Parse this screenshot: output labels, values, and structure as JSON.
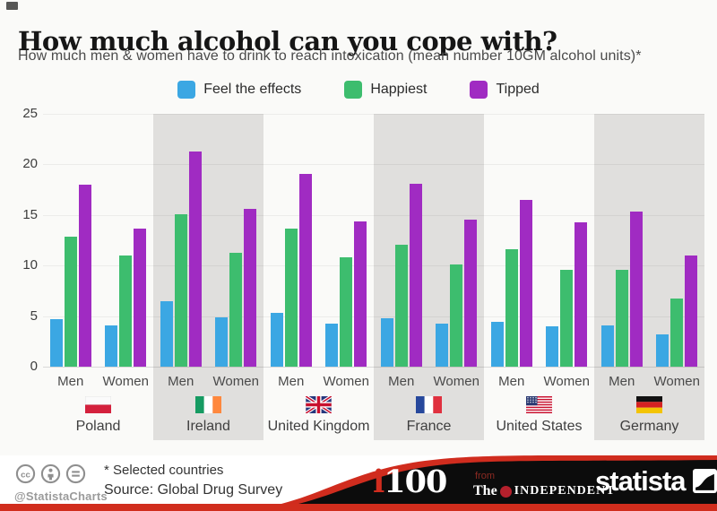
{
  "page": {
    "background": "#fafaf8",
    "accent_red": "#d02c1e",
    "band_gray": "#e0dfdd"
  },
  "header": {
    "title": "How much alcohol can you cope with?",
    "subtitle": "How much men & women have to drink to reach intoxication (mean number 10GM alcohol units)*"
  },
  "chart_data": {
    "type": "bar",
    "title": "How much alcohol can you cope with?",
    "xlabel": "",
    "ylabel": "",
    "ylim": [
      0,
      25
    ],
    "yticks": [
      25,
      20,
      15,
      10,
      5,
      0
    ],
    "grid": true,
    "legend_position": "top",
    "group_labels": [
      "Men",
      "Women"
    ],
    "series": [
      {
        "name": "Feel the effects",
        "color": "#3ba7e3"
      },
      {
        "name": "Happiest",
        "color": "#3dbd6e"
      },
      {
        "name": "Tipped",
        "color": "#a02bc2"
      }
    ],
    "groups": [
      {
        "country": "Poland",
        "flag": "poland",
        "men": [
          4.7,
          12.9,
          18.0
        ],
        "women": [
          4.1,
          11.0,
          13.7
        ]
      },
      {
        "country": "Ireland",
        "flag": "ireland",
        "men": [
          6.5,
          15.1,
          21.3
        ],
        "women": [
          4.9,
          11.3,
          15.6
        ]
      },
      {
        "country": "United Kingdom",
        "flag": "uk",
        "men": [
          5.3,
          13.7,
          19.1
        ],
        "women": [
          4.3,
          10.8,
          14.4
        ]
      },
      {
        "country": "France",
        "flag": "france",
        "men": [
          4.8,
          12.1,
          18.1
        ],
        "women": [
          4.3,
          10.1,
          14.5
        ]
      },
      {
        "country": "United States",
        "flag": "us",
        "men": [
          4.4,
          11.6,
          16.5
        ],
        "women": [
          4.0,
          9.6,
          14.3
        ]
      },
      {
        "country": "Germany",
        "flag": "germany",
        "men": [
          4.1,
          9.6,
          15.3
        ],
        "women": [
          3.2,
          6.7,
          11.0
        ]
      }
    ]
  },
  "footer": {
    "handle": "@StatistaCharts",
    "license_icons": [
      "cc-icon",
      "attribution-icon",
      "equal-license-icon"
    ],
    "note": "* Selected countries",
    "source": "Source: Global Drug Survey",
    "i100_i": "i",
    "i100_num": "100",
    "from_label": "from",
    "independent_the": "The",
    "independent_name": "INDEPENDENT",
    "statista": "statista"
  }
}
